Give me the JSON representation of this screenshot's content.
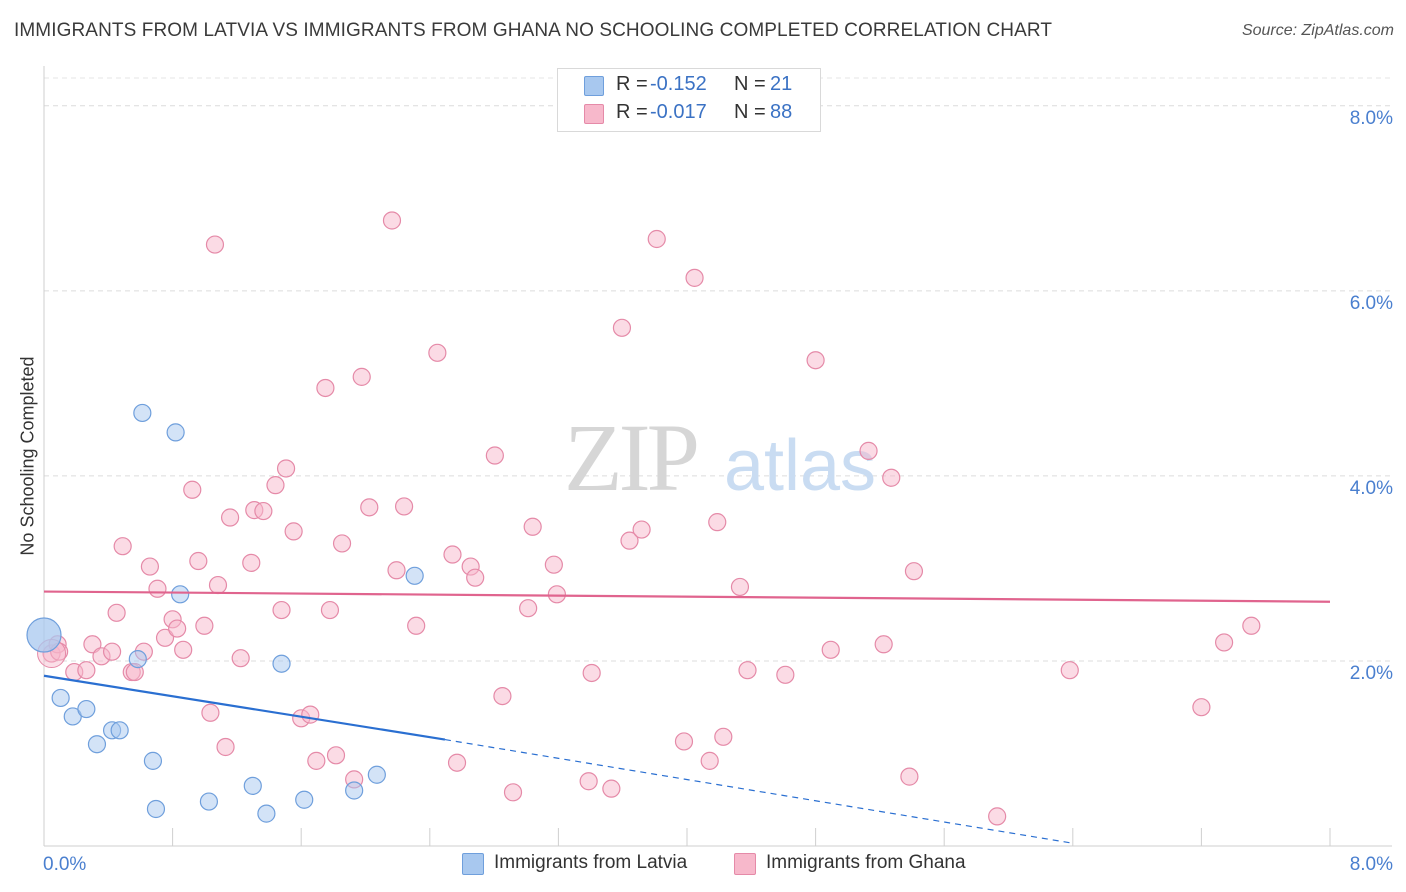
{
  "title": "IMMIGRANTS FROM LATVIA VS IMMIGRANTS FROM GHANA NO SCHOOLING COMPLETED CORRELATION CHART",
  "source": "Source: ZipAtlas.com",
  "watermark": {
    "zip": "ZIP",
    "atlas": "atlas"
  },
  "legend": {
    "latvia": {
      "r_label": "R =",
      "r_value": "-0.152",
      "n_label": "N =",
      "n_value": "21",
      "color": "#a8c8ef",
      "border": "#6f9fdc"
    },
    "ghana": {
      "r_label": "R =",
      "r_value": "-0.017",
      "n_label": "N =",
      "n_value": "88",
      "color": "#f7b8cb",
      "border": "#e58aa8"
    }
  },
  "bottom_legend": {
    "latvia_label": "Immigrants from Latvia",
    "ghana_label": "Immigrants from Ghana"
  },
  "chart_data": {
    "type": "scatter",
    "title": "IMMIGRANTS FROM LATVIA VS IMMIGRANTS FROM GHANA NO SCHOOLING COMPLETED CORRELATION CHART",
    "xlabel": "",
    "ylabel": "No Schooling Completed",
    "xlim": [
      0,
      8.5
    ],
    "ylim": [
      0,
      8.3
    ],
    "x_tick_labels": [
      "0.0%",
      "8.0%"
    ],
    "y_ticks": [
      2.0,
      4.0,
      6.0,
      8.0
    ],
    "y_tick_labels": [
      "2.0%",
      "4.0%",
      "6.0%",
      "8.0%"
    ],
    "grid": true,
    "series": [
      {
        "name": "Immigrants from Latvia",
        "color": "#a8c8ef",
        "stroke": "#6f9fdc",
        "trend_color": "#2a6fd1",
        "trend": {
          "x0": 0.0,
          "y0": 1.84,
          "x1": 2.65,
          "y1": 1.15,
          "dash_to_x": 6.8,
          "dash_to_y": 0.03
        },
        "points": [
          [
            0.0,
            2.28
          ],
          [
            0.11,
            1.6
          ],
          [
            0.19,
            1.4
          ],
          [
            0.28,
            1.48
          ],
          [
            0.35,
            1.1
          ],
          [
            0.45,
            1.25
          ],
          [
            0.5,
            1.25
          ],
          [
            0.62,
            2.02
          ],
          [
            0.65,
            4.68
          ],
          [
            0.72,
            0.92
          ],
          [
            0.74,
            0.4
          ],
          [
            0.87,
            4.47
          ],
          [
            0.9,
            2.72
          ],
          [
            1.09,
            0.48
          ],
          [
            1.38,
            0.65
          ],
          [
            1.47,
            0.35
          ],
          [
            1.57,
            1.97
          ],
          [
            1.72,
            0.5
          ],
          [
            2.05,
            0.6
          ],
          [
            2.2,
            0.77
          ],
          [
            2.45,
            2.92
          ]
        ]
      },
      {
        "name": "Immigrants from Ghana",
        "color": "#f7b8cb",
        "stroke": "#e58aa8",
        "trend_color": "#e0648e",
        "trend": {
          "x0": 0.0,
          "y0": 2.75,
          "x1": 8.5,
          "y1": 2.64
        },
        "points": [
          [
            0.05,
            2.08
          ],
          [
            0.09,
            2.18
          ],
          [
            0.1,
            2.1
          ],
          [
            0.2,
            1.88
          ],
          [
            0.28,
            1.9
          ],
          [
            0.32,
            2.18
          ],
          [
            0.38,
            2.05
          ],
          [
            0.45,
            2.1
          ],
          [
            0.48,
            2.52
          ],
          [
            0.52,
            3.24
          ],
          [
            0.58,
            1.88
          ],
          [
            0.6,
            1.88
          ],
          [
            0.66,
            2.1
          ],
          [
            0.7,
            3.02
          ],
          [
            0.75,
            2.78
          ],
          [
            0.8,
            2.25
          ],
          [
            0.85,
            2.45
          ],
          [
            0.88,
            2.35
          ],
          [
            0.92,
            2.12
          ],
          [
            0.98,
            3.85
          ],
          [
            1.02,
            3.08
          ],
          [
            1.06,
            2.38
          ],
          [
            1.1,
            1.44
          ],
          [
            1.13,
            6.5
          ],
          [
            1.15,
            2.82
          ],
          [
            1.2,
            1.07
          ],
          [
            1.23,
            3.55
          ],
          [
            1.3,
            2.03
          ],
          [
            1.37,
            3.06
          ],
          [
            1.39,
            3.63
          ],
          [
            1.45,
            3.62
          ],
          [
            1.53,
            3.9
          ],
          [
            1.57,
            2.55
          ],
          [
            1.6,
            4.08
          ],
          [
            1.65,
            3.4
          ],
          [
            1.7,
            1.38
          ],
          [
            1.76,
            1.42
          ],
          [
            1.8,
            0.92
          ],
          [
            1.86,
            4.95
          ],
          [
            1.89,
            2.55
          ],
          [
            1.93,
            0.98
          ],
          [
            1.97,
            3.27
          ],
          [
            2.05,
            0.72
          ],
          [
            2.1,
            5.07
          ],
          [
            2.15,
            3.66
          ],
          [
            2.3,
            6.76
          ],
          [
            2.33,
            2.98
          ],
          [
            2.38,
            3.67
          ],
          [
            2.46,
            2.38
          ],
          [
            2.6,
            5.33
          ],
          [
            2.7,
            3.15
          ],
          [
            2.73,
            0.9
          ],
          [
            2.82,
            3.02
          ],
          [
            2.85,
            2.9
          ],
          [
            2.98,
            4.22
          ],
          [
            3.03,
            1.62
          ],
          [
            3.1,
            0.58
          ],
          [
            3.2,
            2.57
          ],
          [
            3.23,
            3.45
          ],
          [
            3.37,
            3.04
          ],
          [
            3.39,
            2.72
          ],
          [
            3.6,
            0.7
          ],
          [
            3.62,
            1.87
          ],
          [
            3.75,
            0.62
          ],
          [
            3.82,
            5.6
          ],
          [
            3.87,
            3.3
          ],
          [
            3.95,
            3.42
          ],
          [
            4.05,
            6.56
          ],
          [
            4.23,
            1.13
          ],
          [
            4.3,
            6.14
          ],
          [
            4.4,
            0.92
          ],
          [
            4.45,
            3.5
          ],
          [
            4.49,
            1.18
          ],
          [
            4.6,
            2.8
          ],
          [
            4.65,
            1.9
          ],
          [
            4.9,
            1.85
          ],
          [
            5.1,
            5.25
          ],
          [
            5.2,
            2.12
          ],
          [
            5.45,
            4.27
          ],
          [
            5.55,
            2.18
          ],
          [
            5.6,
            3.98
          ],
          [
            5.72,
            0.75
          ],
          [
            5.75,
            2.97
          ],
          [
            6.3,
            0.32
          ],
          [
            6.78,
            1.9
          ],
          [
            7.65,
            1.5
          ],
          [
            7.8,
            2.2
          ],
          [
            7.98,
            2.38
          ]
        ]
      }
    ]
  }
}
